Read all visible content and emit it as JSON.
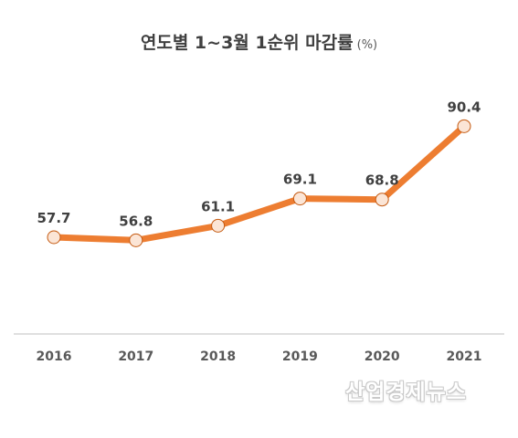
{
  "chart_data": {
    "type": "line",
    "title": "연도별 1~3월 1순위 마감률",
    "unit": "(%)",
    "categories": [
      "2016",
      "2017",
      "2018",
      "2019",
      "2020",
      "2021"
    ],
    "values": [
      57.7,
      56.8,
      61.1,
      69.1,
      68.8,
      90.4
    ],
    "value_labels": [
      "57.7",
      "56.8",
      "61.1",
      "69.1",
      "68.8",
      "90.4"
    ],
    "grid": false,
    "legend": "none"
  },
  "watermark": "산업경제뉴스",
  "colors": {
    "line": "#ed7d31",
    "marker_fill": "#fbe5d6",
    "marker_stroke": "#c55a11",
    "axis": "#bfbfbf",
    "text": "#404040"
  }
}
